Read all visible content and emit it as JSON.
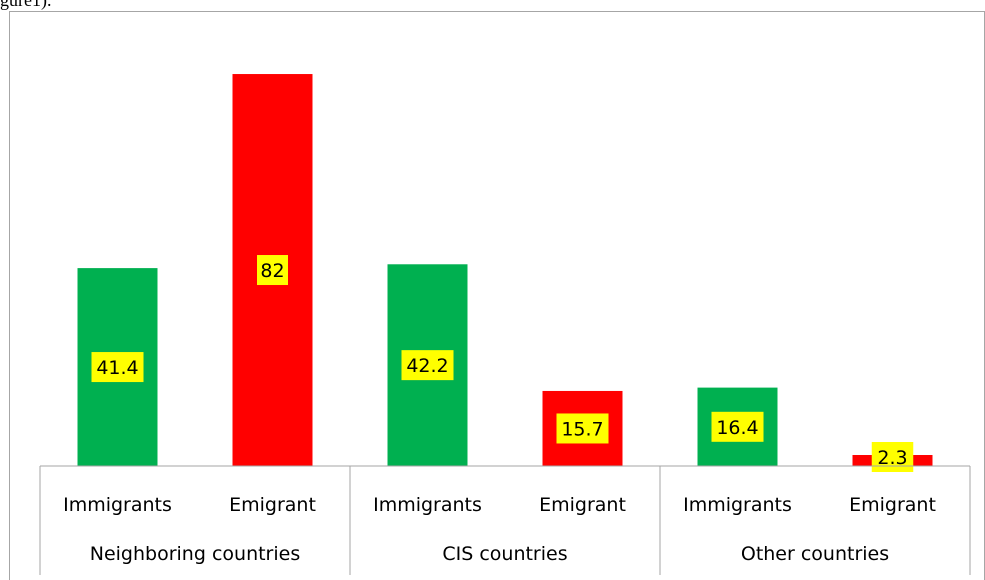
{
  "top_text": "gure1).",
  "chart_data": {
    "type": "bar",
    "groups": [
      "Neighboring countries",
      "CIS countries",
      "Other countries"
    ],
    "categories": [
      "Immigrants",
      "Emigrant"
    ],
    "bars": [
      {
        "group": "Neighboring countries",
        "category": "Immigrants",
        "value": 41.4,
        "label": "41.4"
      },
      {
        "group": "Neighboring countries",
        "category": "Emigrant",
        "value": 82,
        "label": "82"
      },
      {
        "group": "CIS countries",
        "category": "Immigrants",
        "value": 42.2,
        "label": "42.2"
      },
      {
        "group": "CIS countries",
        "category": "Emigrant",
        "value": 15.7,
        "label": "15.7"
      },
      {
        "group": "Other countries",
        "category": "Immigrants",
        "value": 16.4,
        "label": "16.4"
      },
      {
        "group": "Other countries",
        "category": "Emigrant",
        "value": 2.3,
        "label": "2.3"
      }
    ],
    "colors": {
      "Immigrants": "#00b050",
      "Emigrant": "#ff0000",
      "label_bg": "#ffff00"
    },
    "ylim": [
      0,
      90
    ],
    "grid": false,
    "legend": "none"
  }
}
